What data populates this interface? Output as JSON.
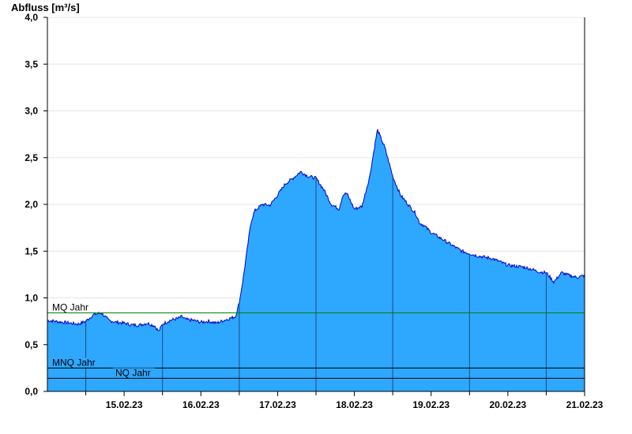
{
  "chart_data": {
    "type": "area",
    "ylabel": "Abfluss [m³/s]",
    "ylim": [
      0,
      4.0
    ],
    "y_ticks": [
      "0,0",
      "0,5",
      "1,0",
      "1,5",
      "2,0",
      "2,5",
      "3,0",
      "3,5",
      "4,0"
    ],
    "x_ticks": [
      "15.02.23",
      "16.02.23",
      "17.02.23",
      "18.02.23",
      "19.02.23",
      "20.02.23",
      "21.02.23"
    ],
    "x_start": "14.02.23 12:00",
    "x_end": "21.02.23 12:00",
    "grid": true,
    "series": [
      {
        "name": "",
        "x_days": [
          0,
          0.1,
          0.2,
          0.3,
          0.4,
          0.5,
          0.6,
          0.7,
          0.75,
          0.8,
          0.9,
          1.0,
          1.1,
          1.2,
          1.3,
          1.4,
          1.45,
          1.5,
          1.6,
          1.7,
          1.75,
          1.8,
          1.9,
          2.0,
          2.1,
          2.2,
          2.3,
          2.45,
          2.5,
          2.55,
          2.6,
          2.65,
          2.7,
          2.8,
          2.9,
          3.0,
          3.1,
          3.2,
          3.3,
          3.4,
          3.5,
          3.6,
          3.7,
          3.8,
          3.85,
          3.9,
          4.0,
          4.1,
          4.2,
          4.3,
          4.4,
          4.5,
          4.6,
          4.7,
          4.8,
          4.85,
          4.9,
          5.0,
          5.2,
          5.4,
          5.6,
          5.8,
          6.0,
          6.2,
          6.3,
          6.4,
          6.5,
          6.6,
          6.7,
          6.8,
          6.9,
          7.0
        ],
        "values": [
          0.76,
          0.75,
          0.74,
          0.73,
          0.72,
          0.75,
          0.82,
          0.84,
          0.8,
          0.76,
          0.74,
          0.73,
          0.71,
          0.71,
          0.73,
          0.7,
          0.64,
          0.72,
          0.76,
          0.78,
          0.8,
          0.77,
          0.76,
          0.74,
          0.75,
          0.73,
          0.76,
          0.8,
          0.95,
          1.2,
          1.5,
          1.8,
          1.93,
          2.0,
          1.99,
          2.1,
          2.22,
          2.28,
          2.35,
          2.3,
          2.28,
          2.16,
          2.0,
          1.95,
          2.1,
          2.12,
          1.95,
          1.98,
          2.3,
          2.8,
          2.6,
          2.3,
          2.1,
          2.0,
          1.9,
          1.8,
          1.78,
          1.7,
          1.6,
          1.5,
          1.45,
          1.42,
          1.35,
          1.33,
          1.31,
          1.28,
          1.27,
          1.17,
          1.27,
          1.24,
          1.22,
          1.24
        ]
      }
    ],
    "reference_lines": [
      {
        "label": "MQ Jahr",
        "value": 0.84,
        "color": "#008000"
      },
      {
        "label": "MNQ Jahr",
        "value": 0.25,
        "color": "#000000"
      },
      {
        "label": "NQ Jahr",
        "value": 0.14,
        "color": "#000000"
      }
    ],
    "colors": {
      "fill": "#2ea8ff",
      "line": "#0000cc",
      "grid": "#e6e6e6",
      "axis": "#000000",
      "day_separator": "#1a4a80"
    }
  }
}
